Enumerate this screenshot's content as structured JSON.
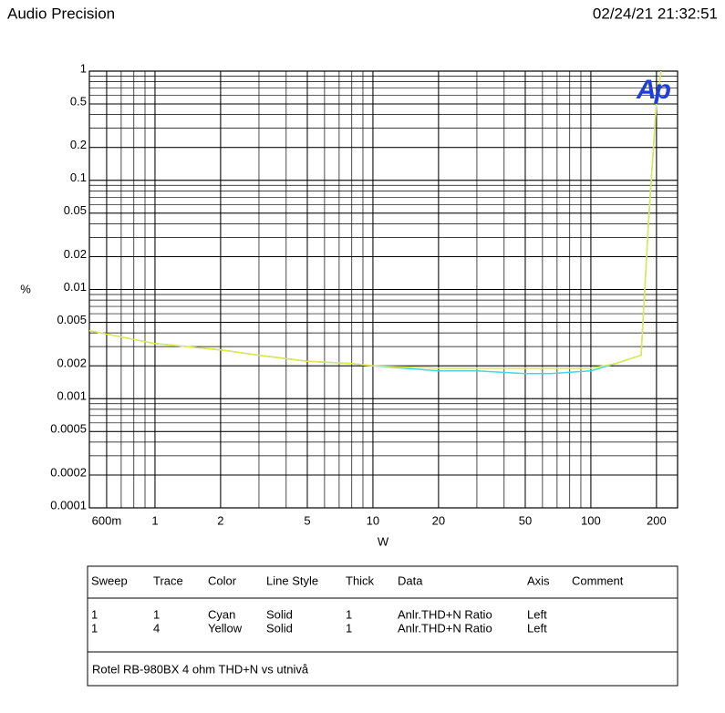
{
  "header": {
    "left": "Audio Precision",
    "right": "02/24/21 21:32:51"
  },
  "chart_data": {
    "type": "line",
    "logo": "Ap",
    "x_label": "W",
    "y_label": "%",
    "x_log": true,
    "y_log": true,
    "grid": true,
    "minor_grid": true,
    "xlim": [
      0.5,
      250
    ],
    "ylim": [
      0.0001,
      1
    ],
    "xticks": [
      {
        "value": 0.6,
        "label": "600m"
      },
      1,
      2,
      5,
      10,
      20,
      50,
      100,
      200
    ],
    "yticks": [
      1,
      0.5,
      0.2,
      0.1,
      0.05,
      0.02,
      0.01,
      0.005,
      0.002,
      0.001,
      0.0005,
      0.0002,
      0.0001
    ],
    "x": [
      0.5,
      1,
      2,
      3,
      5,
      8,
      10,
      20,
      30,
      50,
      65,
      100,
      130,
      170,
      185,
      200,
      210
    ],
    "series": [
      {
        "name": "Cyan",
        "color": "#3fd8ec",
        "values": [
          0.0042,
          0.0032,
          0.0028,
          0.0025,
          0.0022,
          0.0021,
          0.002,
          0.0018,
          0.0018,
          0.0017,
          0.0017,
          0.0018,
          0.0021,
          0.0025,
          0.05,
          0.5,
          1
        ]
      },
      {
        "name": "Yellow",
        "color": "#e4e84a",
        "values": [
          0.0042,
          0.0032,
          0.0028,
          0.0025,
          0.0022,
          0.0021,
          0.002,
          0.0019,
          0.0019,
          0.0019,
          0.0019,
          0.0019,
          0.0021,
          0.0025,
          0.05,
          0.5,
          1
        ]
      }
    ]
  },
  "table": {
    "columns": [
      "Sweep",
      "Trace",
      "Color",
      "Line Style",
      "Thick",
      "Data",
      "Axis",
      "Comment"
    ],
    "rows": [
      [
        "1",
        "1",
        "Cyan",
        "Solid",
        "1",
        "Anlr.THD+N Ratio",
        "Left"
      ],
      [
        "1",
        "4",
        "Yellow",
        "Solid",
        "1",
        "Anlr.THD+N Ratio",
        "Left"
      ]
    ],
    "caption": "Rotel RB-980BX 4 ohm THD+N vs utnivå"
  }
}
